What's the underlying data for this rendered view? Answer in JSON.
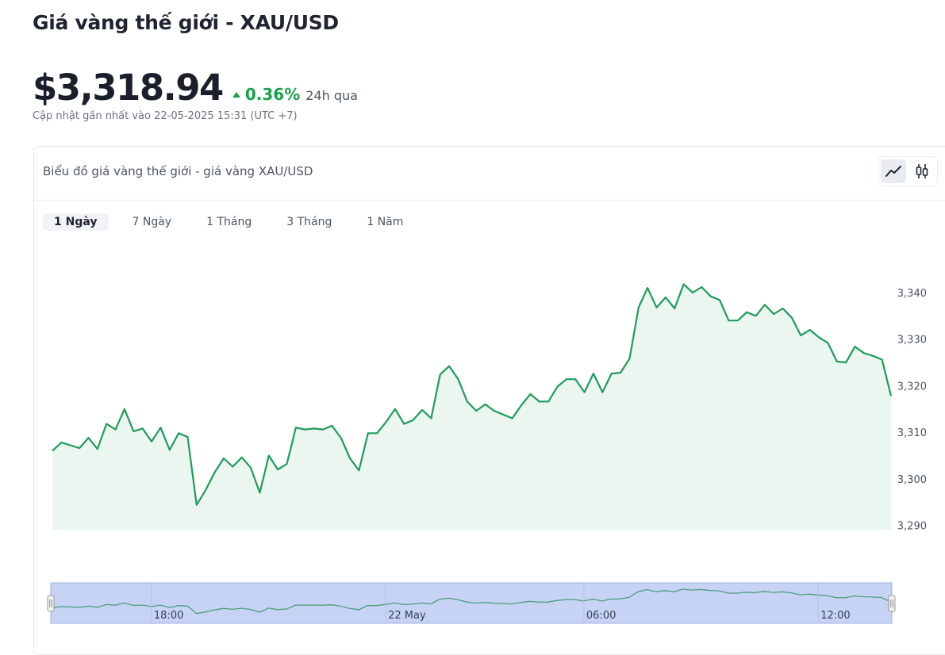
{
  "header": {
    "title": "Giá vàng thế giới - XAU/USD",
    "price": "$3,318.94",
    "change_pct": "0.36%",
    "change_period": "24h qua",
    "updated": "Cập nhật gần nhất vào 22-05-2025 15:31 (UTC +7)"
  },
  "card": {
    "title": "Biểu đồ giá vàng thế giới - giá vàng XAU/USD",
    "chart_type_buttons": [
      {
        "icon": "line-chart-icon",
        "active": true
      },
      {
        "icon": "candlestick-icon",
        "active": false
      }
    ],
    "tabs": [
      {
        "label": "1 Ngày",
        "active": true
      },
      {
        "label": "7 Ngày",
        "active": false
      },
      {
        "label": "1 Tháng",
        "active": false
      },
      {
        "label": "3 Tháng",
        "active": false
      },
      {
        "label": "1 Năm",
        "active": false
      }
    ]
  },
  "colors": {
    "up": "#16a34a",
    "line": "#1e9c5a",
    "area": "#eaf6ef",
    "navigator_fill": "#c7d3f5",
    "navigator_line": "#4b9e7a"
  },
  "chart_data": {
    "type": "area",
    "ylim": [
      3289,
      3343
    ],
    "yticks": [
      "3,340",
      "3,330",
      "3,320",
      "3,310",
      "3,300",
      "3,290"
    ],
    "ytick_values": [
      3340,
      3330,
      3320,
      3310,
      3300,
      3290
    ],
    "values": [
      3306.0,
      3307.8,
      3307.2,
      3306.6,
      3308.8,
      3306.4,
      3311.8,
      3310.6,
      3315.0,
      3310.2,
      3310.8,
      3308.0,
      3311.0,
      3306.2,
      3309.8,
      3309.0,
      3294.4,
      3297.6,
      3301.4,
      3304.4,
      3302.6,
      3304.6,
      3302.4,
      3297.0,
      3305.0,
      3302.0,
      3303.2,
      3311.0,
      3310.6,
      3310.8,
      3310.6,
      3311.4,
      3308.8,
      3304.4,
      3301.8,
      3309.8,
      3309.8,
      3312.2,
      3315.0,
      3311.8,
      3312.6,
      3314.8,
      3313.0,
      3322.4,
      3324.2,
      3321.4,
      3316.6,
      3314.6,
      3316.0,
      3314.6,
      3313.8,
      3313.0,
      3315.8,
      3318.2,
      3316.6,
      3316.6,
      3319.8,
      3321.4,
      3321.4,
      3318.6,
      3322.6,
      3318.6,
      3322.6,
      3322.8,
      3325.8,
      3336.8,
      3341.0,
      3336.8,
      3339.0,
      3336.6,
      3341.8,
      3340.0,
      3341.2,
      3339.2,
      3338.4,
      3334.0,
      3334.0,
      3335.8,
      3335.0,
      3337.4,
      3335.4,
      3336.6,
      3334.6,
      3330.8,
      3332.0,
      3330.4,
      3329.2,
      3325.2,
      3325.0,
      3328.4,
      3327.0,
      3326.4,
      3325.6,
      3317.8
    ],
    "navigator": {
      "labels": [
        "18:00",
        "22 May",
        "06:00",
        "12:00"
      ],
      "label_index": [
        11,
        37,
        59,
        85
      ]
    }
  }
}
